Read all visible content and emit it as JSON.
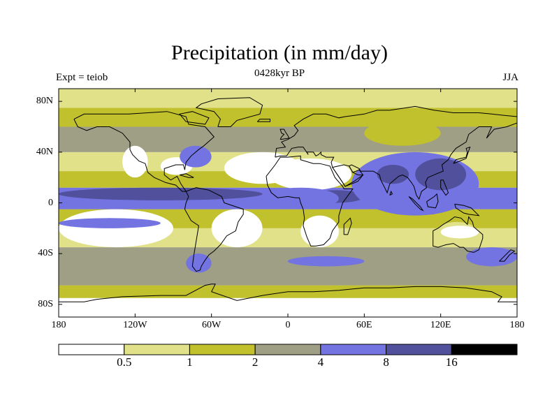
{
  "title": "Precipitation (in mm/day)",
  "subtitle": "0428kyr BP",
  "left_label": "Expt = teiob",
  "right_label": "JJA",
  "colors": {
    "white": "#ffffff",
    "pale": "#e1e18a",
    "olive": "#c1c02d",
    "gray": "#9f9f86",
    "blue": "#7373e1",
    "navy": "#50509c",
    "black": "#000000",
    "coast": "#000000"
  },
  "chart_data": {
    "type": "heatmap",
    "title": "Precipitation (in mm/day)",
    "subtitle": "0428kyr BP",
    "experiment": "Expt = teiob",
    "season": "JJA",
    "x_range": [
      -180,
      180
    ],
    "y_range": [
      -90,
      90
    ],
    "x_ticks": [
      {
        "value": -180,
        "label": "180"
      },
      {
        "value": -120,
        "label": "120W"
      },
      {
        "value": -60,
        "label": "60W"
      },
      {
        "value": 0,
        "label": "0"
      },
      {
        "value": 60,
        "label": "60E"
      },
      {
        "value": 120,
        "label": "120E"
      },
      {
        "value": 180,
        "label": "180"
      }
    ],
    "y_ticks": [
      {
        "value": 80,
        "label": "80N"
      },
      {
        "value": 40,
        "label": "40N"
      },
      {
        "value": 0,
        "label": "0"
      },
      {
        "value": -40,
        "label": "40S"
      },
      {
        "value": -80,
        "label": "80S"
      }
    ],
    "legend": {
      "levels": [
        "0.5",
        "1",
        "2",
        "4",
        "8",
        "16"
      ],
      "colors": [
        "#ffffff",
        "#e1e18a",
        "#c1c02d",
        "#9f9f86",
        "#7373e1",
        "#50509c",
        "#000000"
      ]
    },
    "bands": [
      {
        "lat": [
          -90,
          -75
        ],
        "color": "#ffffff"
      },
      {
        "lat": [
          -75,
          -65
        ],
        "color": "#c1c02d"
      },
      {
        "lat": [
          -65,
          -35
        ],
        "color": "#9f9f86"
      },
      {
        "lat": [
          -35,
          -20
        ],
        "color": "#e1e18a"
      },
      {
        "lat": [
          -20,
          -5
        ],
        "color": "#c1c02d"
      },
      {
        "lat": [
          -5,
          12
        ],
        "color": "#7373e1"
      },
      {
        "lat": [
          12,
          25
        ],
        "color": "#c1c02d"
      },
      {
        "lat": [
          25,
          40
        ],
        "color": "#e1e18a"
      },
      {
        "lat": [
          40,
          60
        ],
        "color": "#9f9f86"
      },
      {
        "lat": [
          60,
          75
        ],
        "color": "#c1c02d"
      },
      {
        "lat": [
          75,
          90
        ],
        "color": "#e1e18a"
      }
    ],
    "regions": [
      {
        "lon": [
          -180,
          -90
        ],
        "lat": [
          -35,
          -5
        ],
        "color": "#ffffff"
      },
      {
        "lon": [
          -180,
          -100
        ],
        "lat": [
          -20,
          -12
        ],
        "color": "#7373e1"
      },
      {
        "lon": [
          -180,
          -20
        ],
        "lat": [
          2,
          12
        ],
        "color": "#50509c"
      },
      {
        "lon": [
          -100,
          -75
        ],
        "lat": [
          22,
          36
        ],
        "color": "#ffffff"
      },
      {
        "lon": [
          -85,
          -60
        ],
        "lat": [
          28,
          45
        ],
        "color": "#7373e1"
      },
      {
        "lon": [
          -130,
          -110
        ],
        "lat": [
          20,
          45
        ],
        "color": "#ffffff"
      },
      {
        "lon": [
          -60,
          -20
        ],
        "lat": [
          -35,
          -5
        ],
        "color": "#ffffff"
      },
      {
        "lon": [
          -50,
          10
        ],
        "lat": [
          15,
          40
        ],
        "color": "#ffffff"
      },
      {
        "lon": [
          -15,
          50
        ],
        "lat": [
          10,
          35
        ],
        "color": "#ffffff"
      },
      {
        "lon": [
          15,
          60
        ],
        "lat": [
          0,
          10
        ],
        "color": "#50509c"
      },
      {
        "lon": [
          10,
          40
        ],
        "lat": [
          -35,
          -10
        ],
        "color": "#ffffff"
      },
      {
        "lon": [
          -20,
          40
        ],
        "lat": [
          -5,
          12
        ],
        "color": "#7373e1"
      },
      {
        "lon": [
          50,
          150
        ],
        "lat": [
          -10,
          40
        ],
        "color": "#7373e1"
      },
      {
        "lon": [
          70,
          95
        ],
        "lat": [
          15,
          30
        ],
        "color": "#50509c"
      },
      {
        "lon": [
          100,
          140
        ],
        "lat": [
          10,
          35
        ],
        "color": "#50509c"
      },
      {
        "lon": [
          115,
          150
        ],
        "lat": [
          -35,
          -15
        ],
        "color": "#e1e18a"
      },
      {
        "lon": [
          120,
          150
        ],
        "lat": [
          -28,
          -18
        ],
        "color": "#ffffff"
      },
      {
        "lon": [
          -80,
          -60
        ],
        "lat": [
          -55,
          -40
        ],
        "color": "#7373e1"
      },
      {
        "lon": [
          0,
          60
        ],
        "lat": [
          -50,
          -42
        ],
        "color": "#7373e1"
      },
      {
        "lon": [
          140,
          180
        ],
        "lat": [
          -50,
          -35
        ],
        "color": "#7373e1"
      },
      {
        "lon": [
          60,
          120
        ],
        "lat": [
          45,
          65
        ],
        "color": "#c1c02d"
      }
    ]
  }
}
